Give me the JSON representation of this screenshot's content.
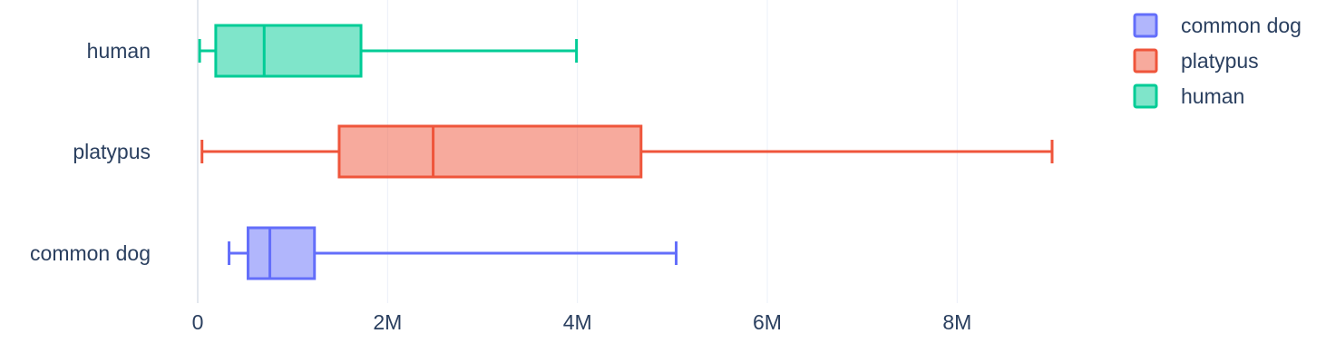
{
  "chart_data": {
    "type": "box",
    "orientation": "horizontal",
    "title": "",
    "xlabel": "",
    "ylabel": "",
    "xlim": [
      0,
      9000000
    ],
    "xticks": [
      0,
      2000000,
      4000000,
      6000000,
      8000000
    ],
    "xtick_labels": [
      "0",
      "2M",
      "4M",
      "6M",
      "8M"
    ],
    "categories": [
      "human",
      "platypus",
      "common dog"
    ],
    "grid": "vertical gridlines",
    "legend_position": "top-right",
    "series": [
      {
        "name": "common dog",
        "category": "common dog",
        "color": "#636efa",
        "min": 330000,
        "q1": 530000,
        "median": 760000,
        "q3": 1230000,
        "max": 5040000
      },
      {
        "name": "platypus",
        "category": "platypus",
        "color": "#ef553b",
        "min": 45000,
        "q1": 1490000,
        "median": 2480000,
        "q3": 4670000,
        "max": 9000000
      },
      {
        "name": "human",
        "category": "human",
        "color": "#00cc96",
        "min": 20000,
        "q1": 190000,
        "median": 700000,
        "q3": 1720000,
        "max": 3990000
      }
    ]
  }
}
